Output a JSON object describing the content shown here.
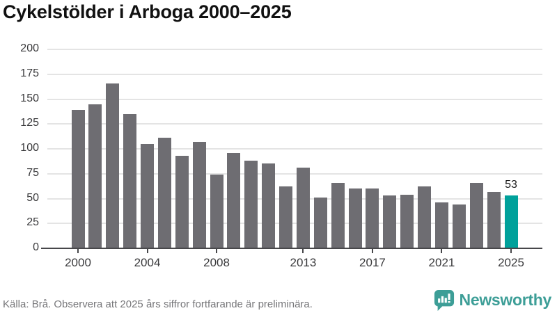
{
  "title": "Cykelstölder i Arboga 2000–2025",
  "footer": {
    "source_note": "Källa: Brå. Observera att 2025 års siffror fortfarande är preliminära.",
    "brand": "Newsworthy"
  },
  "colors": {
    "bar": "#6e6d72",
    "highlight": "#00a19b",
    "axis": "#47474a",
    "gridline": "#e4e4e4",
    "tick_label": "#3a3a3c",
    "annotation": "#1a1a1a",
    "brand_teal": "#3d9e97",
    "footer_gray": "#767679"
  },
  "chart_data": {
    "type": "bar",
    "title": "Cykelstölder i Arboga 2000–2025",
    "x": [
      2000,
      2001,
      2002,
      2003,
      2004,
      2005,
      2006,
      2007,
      2008,
      2009,
      2010,
      2011,
      2012,
      2013,
      2014,
      2015,
      2016,
      2017,
      2018,
      2019,
      2020,
      2021,
      2022,
      2023,
      2024,
      2025
    ],
    "values": [
      139,
      145,
      166,
      135,
      105,
      111,
      93,
      107,
      74,
      96,
      88,
      85,
      62,
      81,
      51,
      66,
      60,
      60,
      53,
      54,
      62,
      46,
      44,
      66,
      57,
      53
    ],
    "highlight_index": 25,
    "annotation": {
      "index": 25,
      "text": "53"
    },
    "xticks": [
      2000,
      2004,
      2008,
      2013,
      2017,
      2021,
      2025
    ],
    "yticks": [
      0,
      25,
      50,
      75,
      100,
      125,
      150,
      175,
      200
    ],
    "ylim": [
      0,
      200
    ],
    "grid": true,
    "legend": false,
    "xlabel": "",
    "ylabel": ""
  }
}
